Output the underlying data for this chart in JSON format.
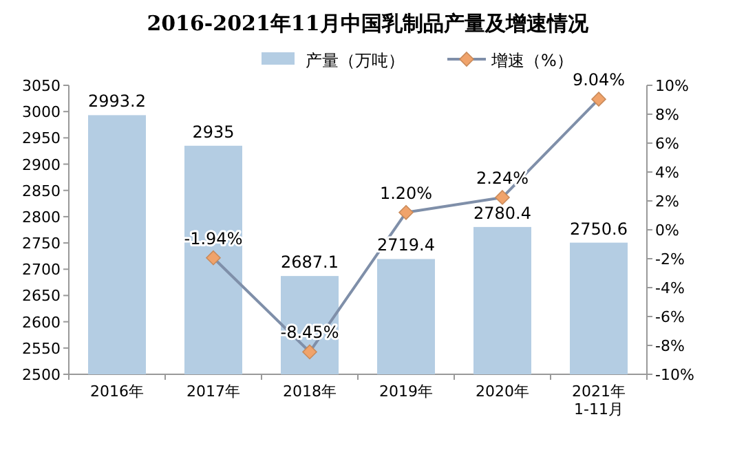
{
  "chart_data": {
    "type": "bar",
    "title": "2016-2021年11月中国乳制品产量及增速情况",
    "categories": [
      "2016年",
      "2017年",
      "2018年",
      "2019年",
      "2020年",
      "2021年\n1-11月"
    ],
    "series": [
      {
        "name": "产量（万吨）",
        "color": "#b4cde3",
        "values": [
          2993.2,
          2935,
          2687.1,
          2719.4,
          2780.4,
          2750.6
        ],
        "value_labels": [
          "2993.2",
          "2935",
          "2687.1",
          "2719.4",
          "2780.4",
          "2750.6"
        ]
      },
      {
        "name": "增速（%）",
        "type": "line",
        "axis": "y2",
        "color": "#7f8fa9",
        "colors": [
          null,
          "#f0a36b",
          "#f0a36b",
          "#f0a36b",
          "#f0a36b",
          "#f0a36b"
        ],
        "marker": "diamond",
        "values": [
          null,
          -1.94,
          -8.45,
          1.2,
          2.24,
          9.04
        ],
        "value_labels": [
          null,
          "-1.94%",
          "-8.45%",
          "1.20%",
          "2.24%",
          "9.04%"
        ]
      }
    ],
    "ylim": [
      2500,
      3050
    ],
    "yticks": [
      2500,
      2550,
      2600,
      2650,
      2700,
      2750,
      2800,
      2850,
      2900,
      2950,
      3000,
      3050
    ],
    "y2lim": [
      -10,
      10
    ],
    "y2ticks": [
      {
        "value": -10,
        "label": "-10%"
      },
      {
        "value": -8,
        "label": "-8%"
      },
      {
        "value": -6,
        "label": "-6%"
      },
      {
        "value": -4,
        "label": "-4%"
      },
      {
        "value": -2,
        "label": "-2%"
      },
      {
        "value": 0,
        "label": "0%"
      },
      {
        "value": 2,
        "label": "2%"
      },
      {
        "value": 4,
        "label": "4%"
      },
      {
        "value": 6,
        "label": "6%"
      },
      {
        "value": 8,
        "label": "8%"
      },
      {
        "value": 10,
        "label": "10%"
      }
    ],
    "legend": "top",
    "grid": false
  }
}
